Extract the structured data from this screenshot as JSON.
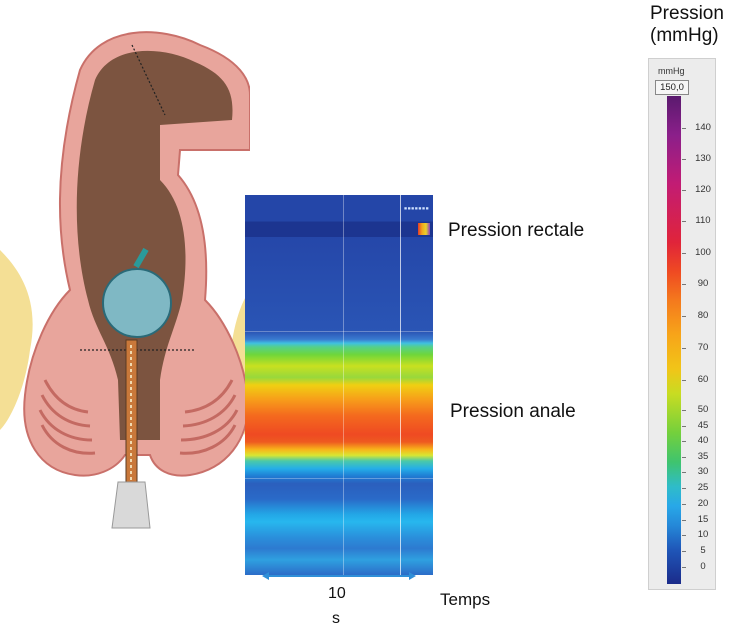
{
  "colorbar": {
    "title_line1": "Pression",
    "title_line2": "(mmHg)",
    "unit": "mmHg",
    "max_value": "150,0",
    "ticks": [
      "140",
      "130",
      "120",
      "110",
      "100",
      "90",
      "80",
      "70",
      "60",
      "50",
      "45",
      "40",
      "35",
      "30",
      "25",
      "20",
      "15",
      "10",
      "5",
      "0"
    ]
  },
  "labels": {
    "rectal": "Pression rectale",
    "anal": "Pression anale",
    "time_value": "10",
    "time_unit": "s",
    "time_axis": "Temps"
  },
  "colors": {
    "tissue_outer": "#e8a59c",
    "tissue_inner": "#7c5440",
    "balloon": "#7fb8c4",
    "fat": "#f4df95",
    "arrow": "#2f8fd8"
  }
}
